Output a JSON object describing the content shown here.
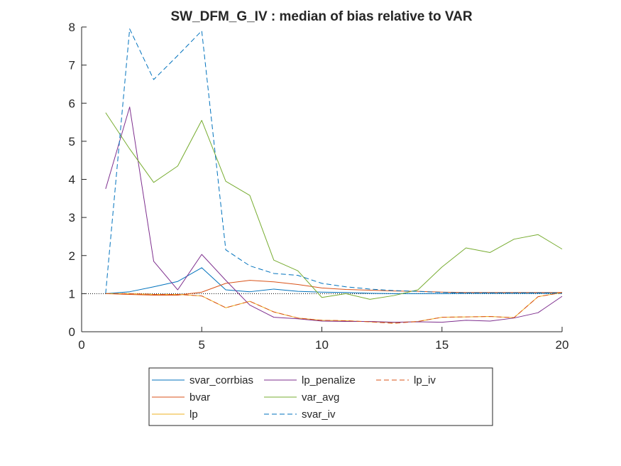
{
  "chart_data": {
    "type": "line",
    "title": "SW_DFM_G_IV : median of bias relative to VAR",
    "xlabel": "",
    "ylabel": "",
    "xlim": [
      0,
      20
    ],
    "ylim": [
      0,
      8
    ],
    "x_ticks": [
      0,
      5,
      10,
      15,
      20
    ],
    "y_ticks": [
      0,
      1,
      2,
      3,
      4,
      5,
      6,
      7,
      8
    ],
    "x_tick_labels": [
      "0",
      "5",
      "10",
      "15",
      "20"
    ],
    "y_tick_labels": [
      "0",
      "1",
      "2",
      "3",
      "4",
      "5",
      "6",
      "7",
      "8"
    ],
    "grid": false,
    "reference_line": {
      "y": 1,
      "style": "dotted",
      "color": "#000000"
    },
    "legend_placement": "below-outside",
    "x": [
      1,
      2,
      3,
      4,
      5,
      6,
      7,
      8,
      9,
      10,
      11,
      12,
      13,
      14,
      15,
      16,
      17,
      18,
      19,
      20
    ],
    "series": [
      {
        "name": "svar_corrbias",
        "color": "#0072BD",
        "dash": "solid",
        "values": [
          1.0,
          1.05,
          1.18,
          1.32,
          1.68,
          1.1,
          1.05,
          1.12,
          1.06,
          1.04,
          1.03,
          1.01,
          1.0,
          1.0,
          1.0,
          1.01,
          1.01,
          1.01,
          1.01,
          1.01
        ]
      },
      {
        "name": "bvar",
        "color": "#D95319",
        "dash": "solid",
        "values": [
          1.0,
          0.98,
          0.96,
          0.96,
          1.04,
          1.27,
          1.35,
          1.31,
          1.24,
          1.15,
          1.11,
          1.09,
          1.07,
          1.06,
          1.04,
          1.03,
          1.03,
          1.03,
          1.03,
          1.03
        ]
      },
      {
        "name": "lp",
        "color": "#EDB120",
        "dash": "solid",
        "values": [
          1.0,
          1.0,
          0.98,
          0.98,
          0.94,
          0.63,
          0.8,
          0.52,
          0.36,
          0.3,
          0.29,
          0.26,
          0.24,
          0.27,
          0.38,
          0.39,
          0.4,
          0.37,
          0.92,
          1.03
        ]
      },
      {
        "name": "lp_penalize",
        "color": "#7E2F8E",
        "dash": "solid",
        "values": [
          3.75,
          5.9,
          1.85,
          1.1,
          2.03,
          1.35,
          0.7,
          0.38,
          0.34,
          0.28,
          0.27,
          0.27,
          0.25,
          0.26,
          0.25,
          0.3,
          0.28,
          0.36,
          0.5,
          0.93
        ]
      },
      {
        "name": "var_avg",
        "color": "#77AC30",
        "dash": "solid",
        "values": [
          5.75,
          4.8,
          3.92,
          4.35,
          5.55,
          3.95,
          3.58,
          1.88,
          1.6,
          0.9,
          1.0,
          0.85,
          0.95,
          1.1,
          1.7,
          2.2,
          2.08,
          2.43,
          2.55,
          2.17
        ]
      },
      {
        "name": "svar_iv",
        "color": "#0072BD",
        "dash": "dashed",
        "values": [
          1.0,
          7.95,
          6.62,
          7.25,
          7.9,
          2.15,
          1.73,
          1.53,
          1.48,
          1.27,
          1.18,
          1.12,
          1.08,
          1.06,
          1.03,
          1.02,
          1.02,
          1.02,
          1.02,
          1.02
        ]
      },
      {
        "name": "lp_iv",
        "color": "#D95319",
        "dash": "dashed",
        "values": [
          1.0,
          1.0,
          0.98,
          0.98,
          0.94,
          0.63,
          0.8,
          0.52,
          0.36,
          0.3,
          0.29,
          0.26,
          0.22,
          0.27,
          0.38,
          0.39,
          0.4,
          0.37,
          0.92,
          1.03
        ]
      }
    ],
    "legend_order": [
      "svar_corrbias",
      "bvar",
      "lp",
      "lp_penalize",
      "var_avg",
      "svar_iv",
      "lp_iv"
    ]
  }
}
